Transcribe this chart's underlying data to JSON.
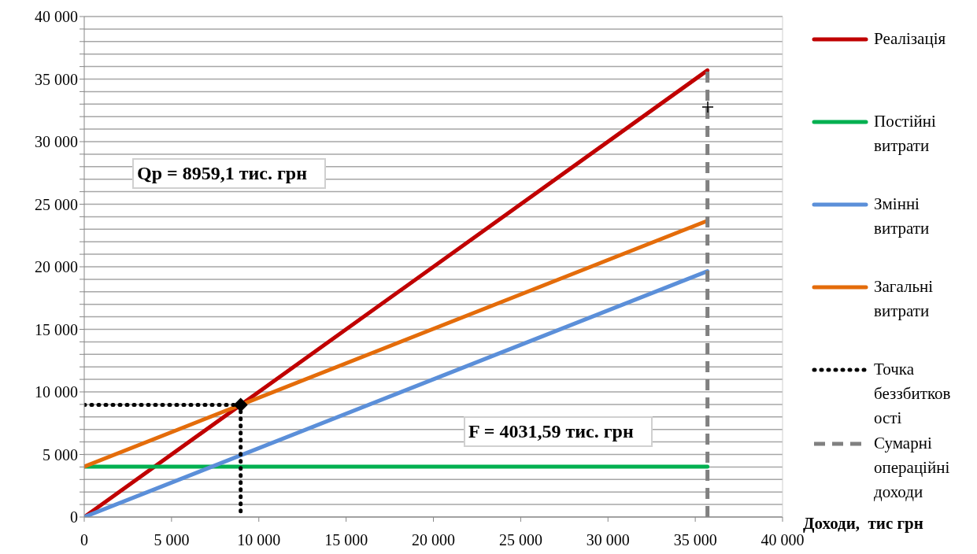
{
  "chart_data": {
    "type": "line",
    "xlabel": "Доходи,  тис грн",
    "xlim": [
      0,
      40000
    ],
    "xticks": [
      0,
      5000,
      10000,
      15000,
      20000,
      25000,
      30000,
      35000,
      40000
    ],
    "ylim": [
      0,
      40000
    ],
    "yticks": [
      0,
      {
        "value": 1000,
        "label": null
      },
      {
        "value": 2000,
        "label": null
      },
      {
        "value": 3000,
        "label": null
      },
      {
        "value": 4000,
        "label": null
      },
      5000,
      {
        "value": 6000,
        "label": null
      },
      {
        "value": 7000,
        "label": null
      },
      {
        "value": 8000,
        "label": null
      },
      {
        "value": 9000,
        "label": null
      },
      10000,
      {
        "value": 11000,
        "label": null
      },
      {
        "value": 12000,
        "label": null
      },
      {
        "value": 13000,
        "label": null
      },
      {
        "value": 14000,
        "label": null
      },
      15000,
      {
        "value": 16000,
        "label": null
      },
      {
        "value": 17000,
        "label": null
      },
      {
        "value": 18000,
        "label": null
      },
      {
        "value": 19000,
        "label": null
      },
      20000,
      {
        "value": 21000,
        "label": null
      },
      {
        "value": 22000,
        "label": null
      },
      {
        "value": 23000,
        "label": null
      },
      {
        "value": 24000,
        "label": null
      },
      25000,
      {
        "value": 26000,
        "label": null
      },
      {
        "value": 27000,
        "label": null
      },
      {
        "value": 28000,
        "label": null
      },
      {
        "value": 29000,
        "label": null
      },
      30000,
      {
        "value": 31000,
        "label": null
      },
      {
        "value": 32000,
        "label": null
      },
      {
        "value": 33000,
        "label": null
      },
      {
        "value": 34000,
        "label": null
      },
      35000,
      {
        "value": 36000,
        "label": null
      },
      {
        "value": 37000,
        "label": null
      },
      {
        "value": 38000,
        "label": null
      },
      {
        "value": 39000,
        "label": null
      },
      40000
    ],
    "grid": "y",
    "legend": "right",
    "marker": "none",
    "line_style": "solid",
    "annotations": [
      "Qp = 8959,1 тис. грн",
      "F = 4031,59 тис. грн"
    ],
    "series": [
      {
        "name": "Реалізація",
        "color": "#c00000",
        "x": [
          0,
          35700
        ],
        "values": [
          0,
          35700
        ]
      },
      {
        "name": "Постійні витрати",
        "color": "#00b050",
        "x": [
          0,
          35700
        ],
        "values": [
          4030,
          4030
        ]
      },
      {
        "name": "Змінні витрати",
        "color": "#5b8fd9",
        "x": [
          0,
          35700
        ],
        "values": [
          0,
          19650
        ]
      },
      {
        "name": "Загальні витрати",
        "color": "#e46c0a",
        "x": [
          0,
          35700
        ],
        "values": [
          4030,
          23680
        ]
      },
      {
        "name": "Точка беззбитковості",
        "color": "#000000",
        "line_style": "dotted",
        "x": [
          0,
          8960,
          8960
        ],
        "values": [
          8960,
          8960,
          0
        ]
      },
      {
        "type": "scatter",
        "color": "#000000",
        "marker": "diamond",
        "x": [
          8960
        ],
        "values": [
          8960
        ]
      },
      {
        "name": "Сумарні операційні доходи",
        "color": "#808080",
        "line_style": "dashed",
        "x": [
          35700,
          35700
        ],
        "values": [
          0,
          35700
        ]
      }
    ]
  }
}
